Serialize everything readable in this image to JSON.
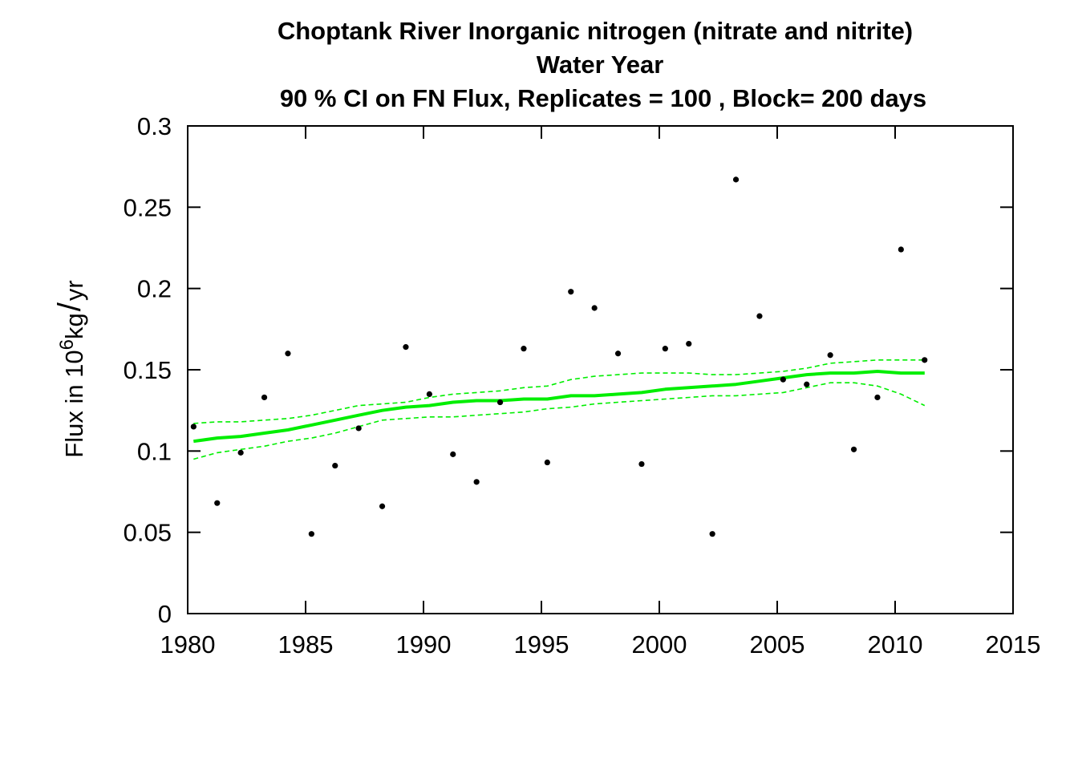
{
  "chart_data": {
    "type": "scatter",
    "title_lines": [
      "Choptank River   Inorganic nitrogen (nitrate and nitrite)",
      "Water Year",
      "90 % CI on FN Flux, Replicates = 100 , Block= 200 days"
    ],
    "ylabel": {
      "prefix": "Flux in 10",
      "superscript": "6",
      "suffix": "kg",
      "slash": "/",
      "unit": "yr"
    },
    "xlabel": "",
    "xlim": [
      1980,
      2015
    ],
    "ylim": [
      0,
      0.3
    ],
    "xticks": [
      "1980",
      "1985",
      "1990",
      "1995",
      "2000",
      "2005",
      "2010",
      "2015"
    ],
    "yticks": [
      "0",
      "0.05",
      "0.1",
      "0.15",
      "0.2",
      "0.25",
      "0.3"
    ],
    "grid": false,
    "colors": {
      "points": "#000000",
      "flux_line": "#00ee00",
      "ci_lines": "#00ee00"
    },
    "series": [
      {
        "type": "scatter",
        "x": [
          1980.25,
          1981.25,
          1982.25,
          1983.25,
          1984.25,
          1985.25,
          1986.25,
          1987.25,
          1988.25,
          1989.25,
          1990.25,
          1991.25,
          1992.25,
          1993.25,
          1994.25,
          1995.25,
          1996.25,
          1997.25,
          1998.25,
          1999.25,
          2000.25,
          2001.25,
          2002.25,
          2003.25,
          2004.25,
          2005.25,
          2006.25,
          2007.25,
          2008.25,
          2009.25,
          2010.25,
          2011.25
        ],
        "y": [
          0.115,
          0.068,
          0.099,
          0.133,
          0.16,
          0.049,
          0.091,
          0.114,
          0.066,
          0.164,
          0.135,
          0.098,
          0.081,
          0.13,
          0.163,
          0.093,
          0.198,
          0.188,
          0.16,
          0.092,
          0.163,
          0.166,
          0.049,
          0.267,
          0.183,
          0.144,
          0.141,
          0.159,
          0.101,
          0.133,
          0.224,
          0.156
        ]
      },
      {
        "type": "line",
        "style": "solid",
        "x": [
          1980.25,
          1981.25,
          1982.25,
          1983.25,
          1984.25,
          1985.25,
          1986.25,
          1987.25,
          1988.25,
          1989.25,
          1990.25,
          1991.25,
          1992.25,
          1993.25,
          1994.25,
          1995.25,
          1996.25,
          1997.25,
          1998.25,
          1999.25,
          2000.25,
          2001.25,
          2002.25,
          2003.25,
          2004.25,
          2005.25,
          2006.25,
          2007.25,
          2008.25,
          2009.25,
          2010.25,
          2011.25
        ],
        "y": [
          0.106,
          0.108,
          0.109,
          0.111,
          0.113,
          0.116,
          0.119,
          0.122,
          0.125,
          0.127,
          0.128,
          0.13,
          0.131,
          0.131,
          0.132,
          0.132,
          0.134,
          0.134,
          0.135,
          0.136,
          0.138,
          0.139,
          0.14,
          0.141,
          0.143,
          0.145,
          0.147,
          0.148,
          0.148,
          0.149,
          0.148,
          0.148
        ]
      },
      {
        "type": "line",
        "style": "dashed",
        "x": [
          1980.25,
          1981.25,
          1982.25,
          1983.25,
          1984.25,
          1985.25,
          1986.25,
          1987.25,
          1988.25,
          1989.25,
          1990.25,
          1991.25,
          1992.25,
          1993.25,
          1994.25,
          1995.25,
          1996.25,
          1997.25,
          1998.25,
          1999.25,
          2000.25,
          2001.25,
          2002.25,
          2003.25,
          2004.25,
          2005.25,
          2006.25,
          2007.25,
          2008.25,
          2009.25,
          2010.25,
          2011.25
        ],
        "y": [
          0.117,
          0.118,
          0.118,
          0.119,
          0.12,
          0.122,
          0.125,
          0.128,
          0.129,
          0.13,
          0.133,
          0.135,
          0.136,
          0.137,
          0.139,
          0.14,
          0.144,
          0.146,
          0.147,
          0.148,
          0.148,
          0.148,
          0.147,
          0.147,
          0.148,
          0.149,
          0.151,
          0.154,
          0.155,
          0.156,
          0.156,
          0.156
        ]
      },
      {
        "type": "line",
        "style": "dashed",
        "x": [
          1980.25,
          1981.25,
          1982.25,
          1983.25,
          1984.25,
          1985.25,
          1986.25,
          1987.25,
          1988.25,
          1989.25,
          1990.25,
          1991.25,
          1992.25,
          1993.25,
          1994.25,
          1995.25,
          1996.25,
          1997.25,
          1998.25,
          1999.25,
          2000.25,
          2001.25,
          2002.25,
          2003.25,
          2004.25,
          2005.25,
          2006.25,
          2007.25,
          2008.25,
          2009.25,
          2010.25,
          2011.25
        ],
        "y": [
          0.095,
          0.099,
          0.101,
          0.103,
          0.106,
          0.108,
          0.111,
          0.115,
          0.119,
          0.12,
          0.121,
          0.121,
          0.122,
          0.123,
          0.124,
          0.126,
          0.127,
          0.129,
          0.13,
          0.131,
          0.132,
          0.133,
          0.134,
          0.134,
          0.135,
          0.136,
          0.139,
          0.142,
          0.142,
          0.14,
          0.135,
          0.128
        ]
      }
    ]
  }
}
